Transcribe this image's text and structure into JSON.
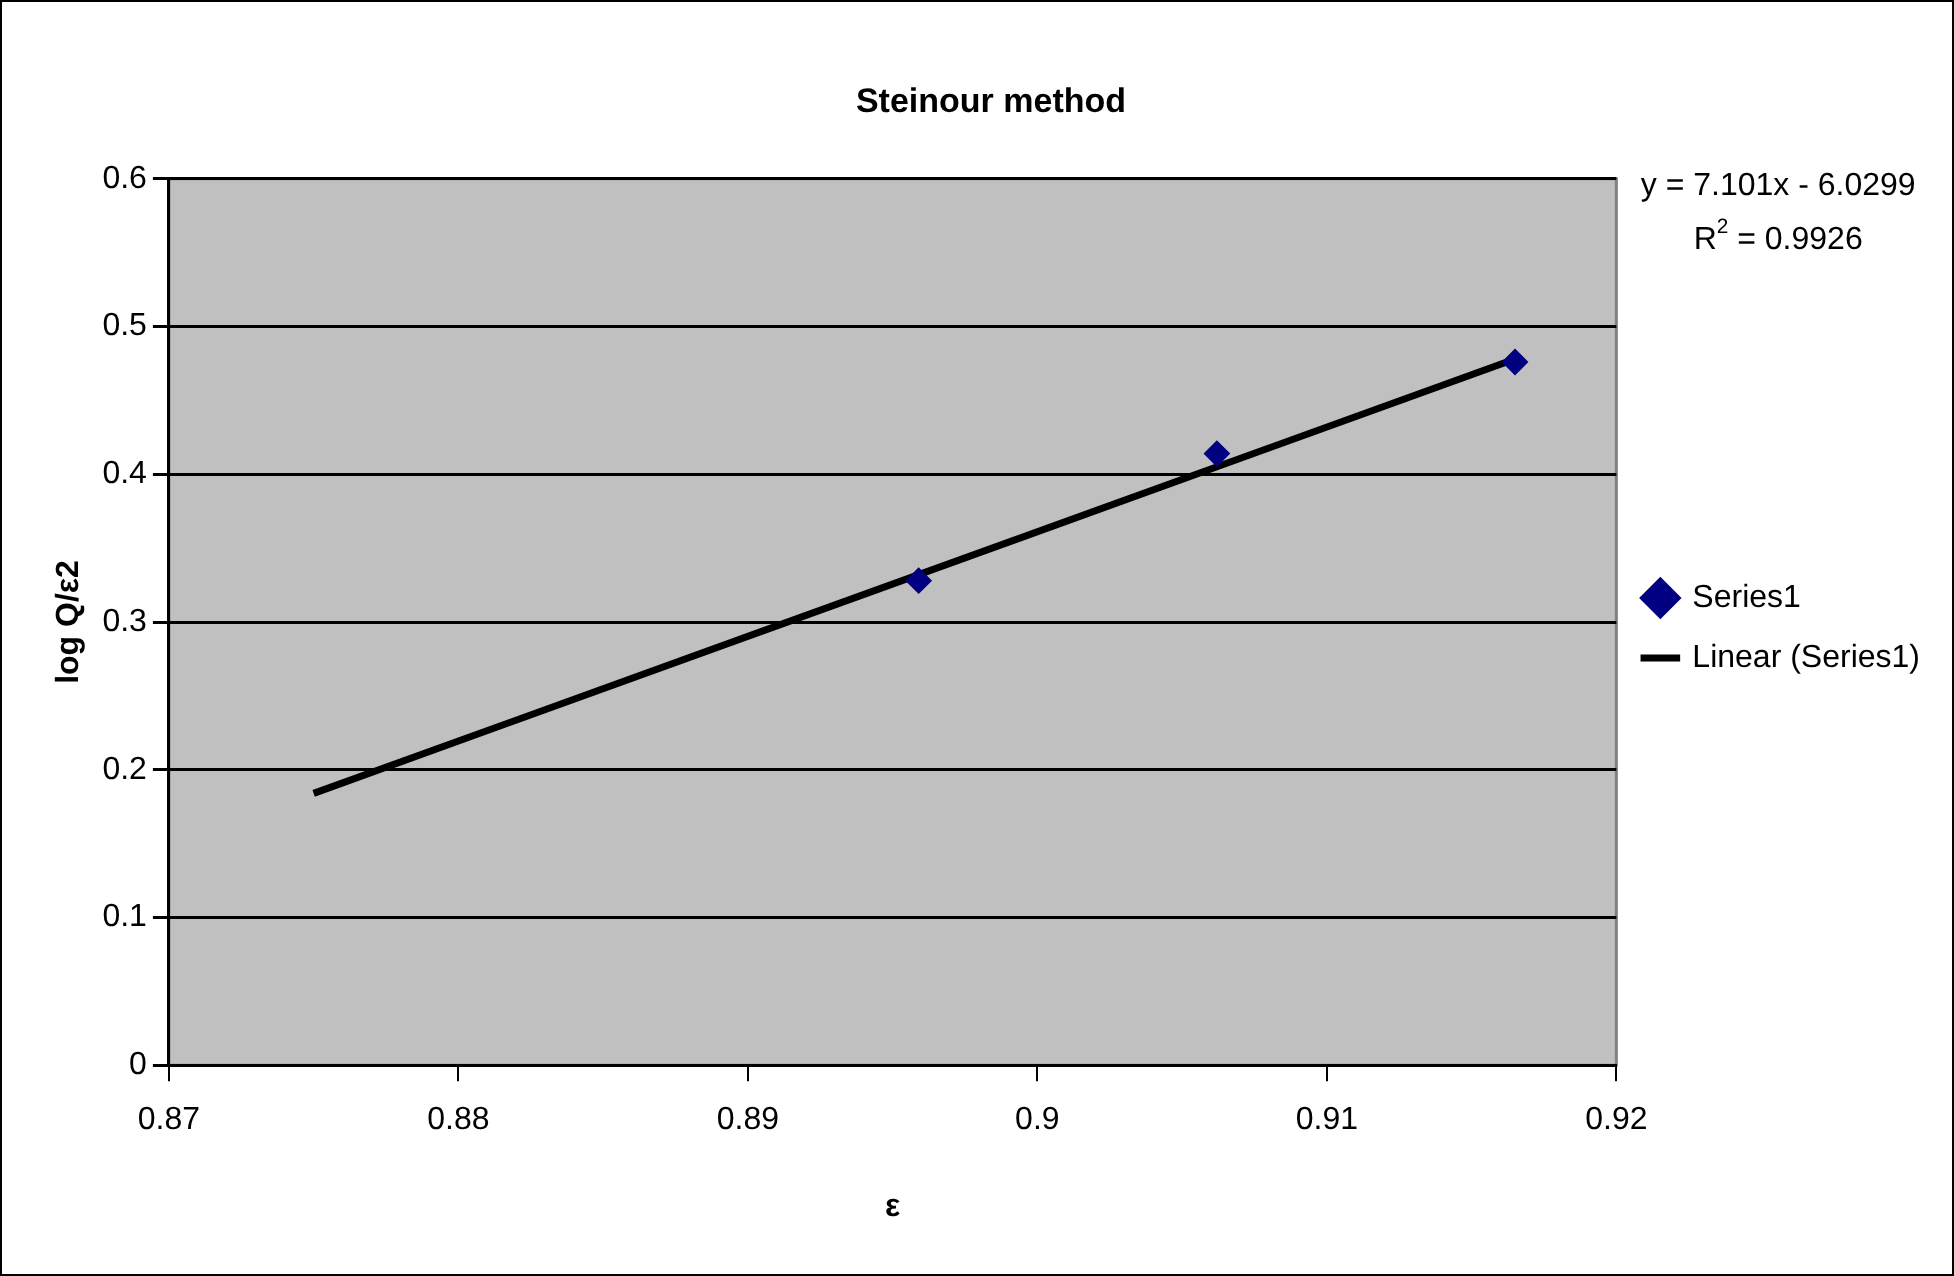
{
  "chart_data": {
    "type": "scatter",
    "title": "Steinour method",
    "xlabel": "ε",
    "ylabel": "log Q/ε2",
    "series": [
      {
        "name": "Series1",
        "type": "scatter",
        "color": "#000080",
        "marker": "diamond",
        "x": [
          0.8959,
          0.9062,
          0.9165
        ],
        "values": [
          0.328,
          0.414,
          0.476
        ]
      },
      {
        "name": "Linear (Series1)",
        "type": "line",
        "color": "#000000",
        "marker": "none",
        "line_style": "solid",
        "x": [
          0.875,
          0.9165
        ],
        "values": [
          0.184,
          0.478
        ]
      }
    ],
    "xlim": [
      0.87,
      0.92
    ],
    "xticks": [
      0.87,
      0.88,
      0.89,
      0.9,
      0.91,
      0.92
    ],
    "ylim": [
      0,
      0.6
    ],
    "yticks": [
      0,
      0.1,
      0.2,
      0.3,
      0.4,
      0.5,
      0.6
    ],
    "grid": "y",
    "legend": "right",
    "annotations": [
      "y = 7.101x - 6.0299",
      "R$^{2}$ = 0.9926"
    ]
  }
}
